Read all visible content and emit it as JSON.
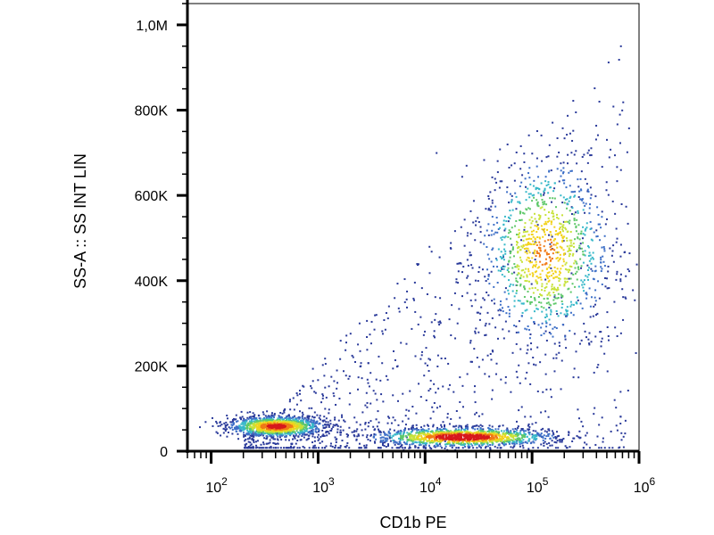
{
  "chart_data": {
    "type": "scatter",
    "subtype": "flow-cytometry density plot (pseudocolor)",
    "xlabel": "CD1b PE",
    "ylabel": "SS-A :: SS INT LIN",
    "x_scale": "log",
    "y_scale": "linear",
    "xlim": [
      60,
      1000000
    ],
    "ylim": [
      0,
      1050000
    ],
    "x_ticks": [
      {
        "value": 100,
        "base": "10",
        "exp": "2"
      },
      {
        "value": 1000,
        "base": "10",
        "exp": "3"
      },
      {
        "value": 10000,
        "base": "10",
        "exp": "4"
      },
      {
        "value": 100000,
        "base": "10",
        "exp": "5"
      },
      {
        "value": 1000000,
        "base": "10",
        "exp": "6"
      }
    ],
    "y_ticks": [
      {
        "value": 0,
        "label": "0"
      },
      {
        "value": 200000,
        "label": "200K"
      },
      {
        "value": 400000,
        "label": "400K"
      },
      {
        "value": 600000,
        "label": "600K"
      },
      {
        "value": 800000,
        "label": "800K"
      },
      {
        "value": 1000000,
        "label": "1,0M"
      }
    ],
    "populations": [
      {
        "center_x": 400,
        "center_y": 60000,
        "spread_log_x": 0.22,
        "spread_y": 12000,
        "relative_density": 0.9
      },
      {
        "center_x": 22000,
        "center_y": 35000,
        "spread_log_x": 0.42,
        "spread_y": 11000,
        "relative_density": 1.0
      },
      {
        "center_x": 130000,
        "center_y": 470000,
        "spread_log_x": 0.3,
        "spread_y": 110000,
        "relative_density": 0.75
      }
    ],
    "color_scale": [
      "#2a3a9a",
      "#3d6fc7",
      "#37b8c9",
      "#5fc86a",
      "#c7e23a",
      "#f2d21b",
      "#f07a16",
      "#d7191c"
    ],
    "grid": false,
    "legend": "none"
  }
}
